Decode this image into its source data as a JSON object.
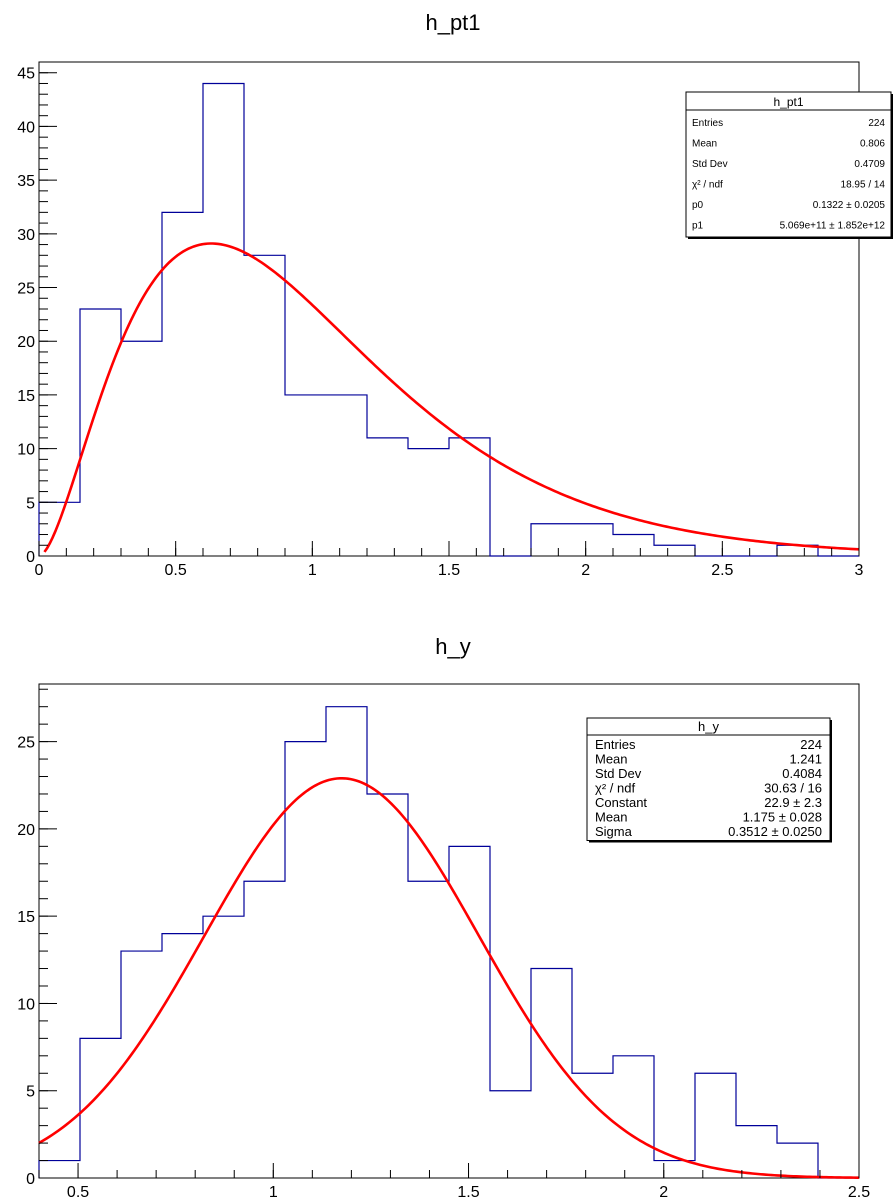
{
  "chart_data": [
    {
      "type": "histogram",
      "title": "h_pt1",
      "xlim": [
        0,
        3
      ],
      "ylim": [
        0,
        46
      ],
      "x_ticks": [
        "0",
        "0.5",
        "1",
        "1.5",
        "2",
        "2.5",
        "3"
      ],
      "y_ticks": [
        "0",
        "5",
        "10",
        "15",
        "20",
        "25",
        "30",
        "35",
        "40",
        "45"
      ],
      "bin_edges": [
        0,
        0.15,
        0.3,
        0.45,
        0.6,
        0.75,
        0.9,
        1.05,
        1.2,
        1.35,
        1.5,
        1.65,
        1.8,
        1.95,
        2.1,
        2.25,
        2.4,
        2.55,
        2.7,
        2.85,
        3.0
      ],
      "counts": [
        5,
        23,
        20,
        32,
        44,
        28,
        15,
        15,
        11,
        10,
        11,
        0,
        3,
        3,
        2,
        1,
        0,
        0,
        1,
        0
      ],
      "hist_color": "#000099",
      "fit_color": "#ff0000",
      "fit": {
        "function": "p0_gamma",
        "p0": 0.1322,
        "peak_x": 0.63,
        "peak_y": 29.1,
        "x_range": [
          0.02,
          3.0
        ]
      },
      "stats_box": {
        "title": "h_pt1",
        "rows": [
          {
            "label": "Entries",
            "value": "224"
          },
          {
            "label": "Mean",
            "value": "0.806"
          },
          {
            "label": "Std Dev",
            "value": "0.4709"
          },
          {
            "label": "χ² / ndf",
            "value": "18.95 / 14"
          },
          {
            "label": "p0",
            "value": "0.1322 ± 0.0205"
          },
          {
            "label": "p1",
            "value": "5.069e+11 ± 1.852e+12"
          }
        ]
      }
    },
    {
      "type": "histogram",
      "title": "h_y",
      "xlim": [
        0.4,
        2.5
      ],
      "ylim": [
        0,
        28.3
      ],
      "x_ticks": [
        "0.5",
        "1",
        "1.5",
        "2",
        "2.5"
      ],
      "x_tick_values": [
        0.5,
        1,
        1.5,
        2,
        2.5
      ],
      "y_ticks": [
        "0",
        "5",
        "10",
        "15",
        "20",
        "25"
      ],
      "bin_edges": [
        0.4,
        0.505,
        0.61,
        0.715,
        0.82,
        0.925,
        1.03,
        1.135,
        1.24,
        1.345,
        1.45,
        1.555,
        1.66,
        1.765,
        1.87,
        1.975,
        2.08,
        2.185,
        2.29,
        2.395,
        2.5
      ],
      "counts": [
        1,
        8,
        13,
        14,
        15,
        17,
        25,
        27,
        22,
        17,
        19,
        5,
        12,
        6,
        7,
        1,
        6,
        3,
        2,
        0
      ],
      "hist_color": "#000099",
      "fit_color": "#ff0000",
      "fit": {
        "function": "gaus",
        "constant": 22.9,
        "mean": 1.175,
        "sigma": 0.3512,
        "x_range": [
          0.4,
          2.5
        ]
      },
      "stats_box": {
        "title": "h_y",
        "rows": [
          {
            "label": "Entries",
            "value": "224"
          },
          {
            "label": "Mean",
            "value": "1.241"
          },
          {
            "label": "Std Dev",
            "value": "0.4084"
          },
          {
            "label": "χ² / ndf",
            "value": "30.63 / 16"
          },
          {
            "label": "Constant",
            "value": "22.9 ± 2.3"
          },
          {
            "label": "Mean",
            "value": "1.175 ± 0.028"
          },
          {
            "label": "Sigma",
            "value": "0.3512 ± 0.0250"
          }
        ]
      }
    }
  ]
}
